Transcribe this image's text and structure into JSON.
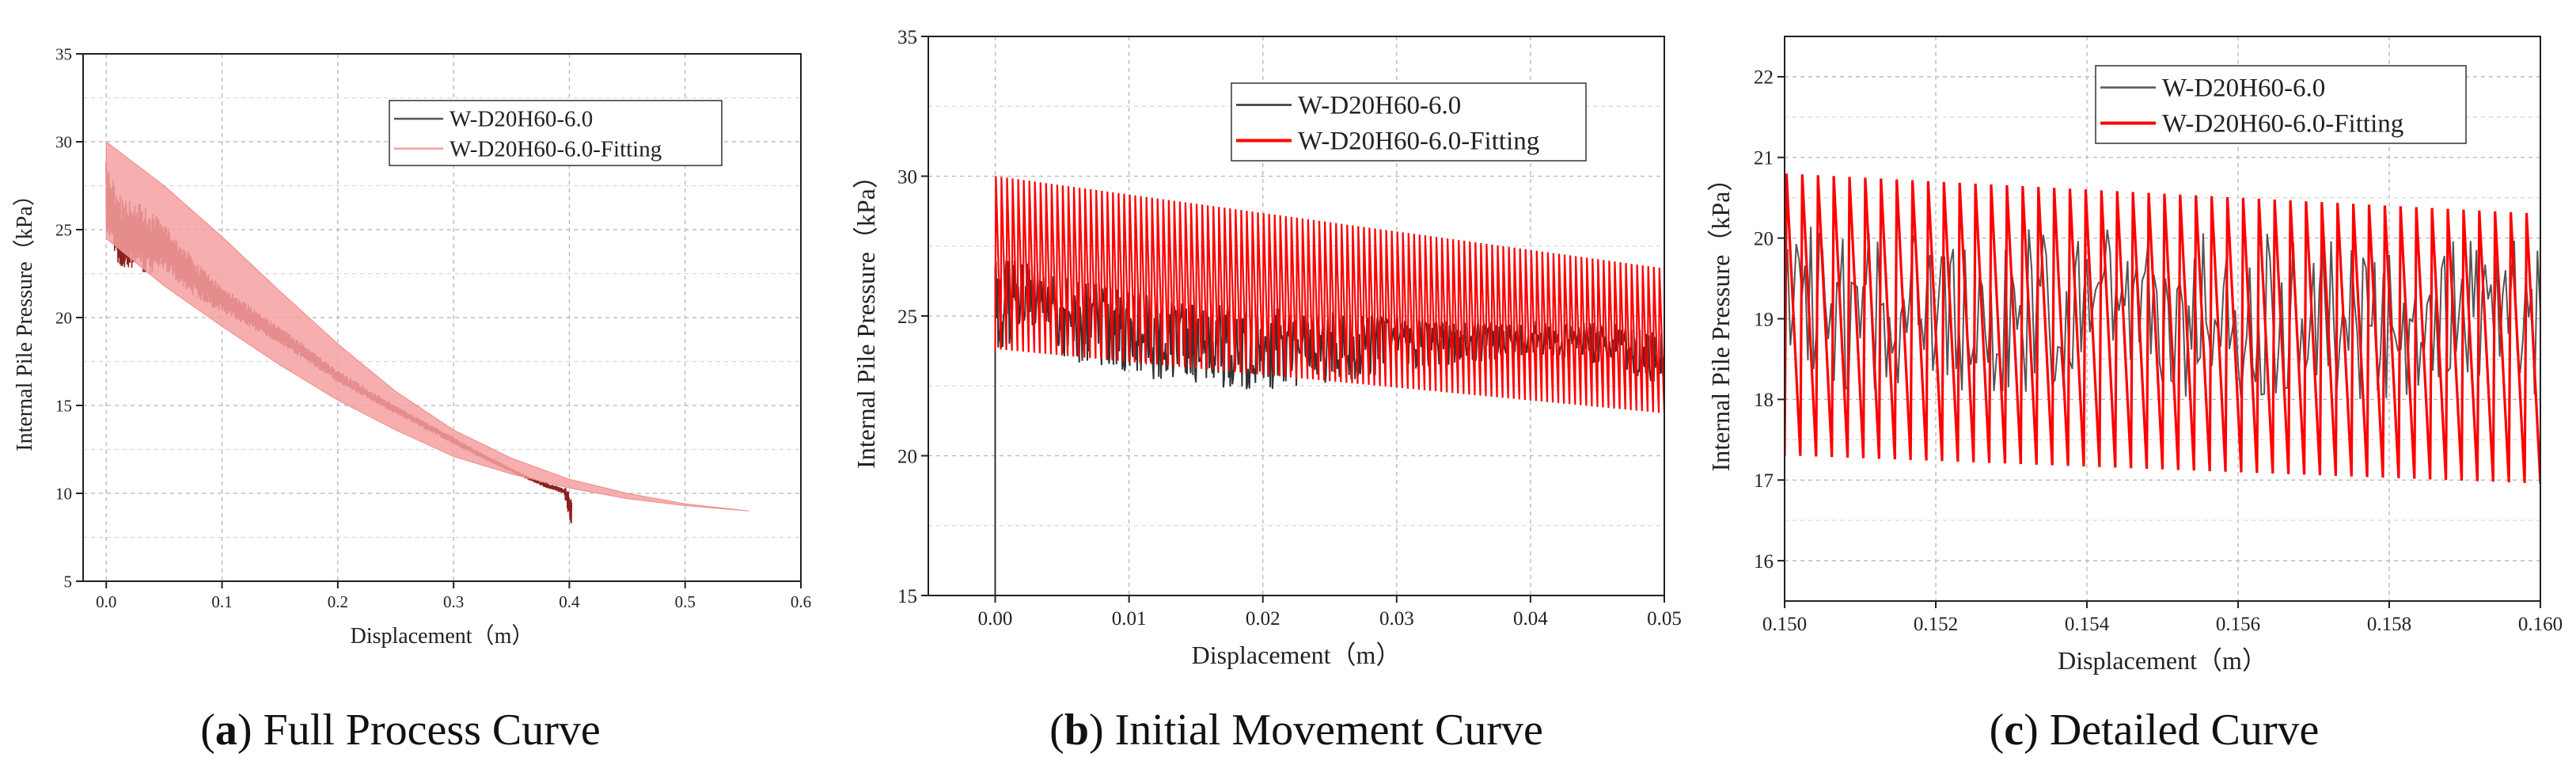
{
  "chart_data": [
    {
      "type": "line",
      "caption": {
        "letter": "a",
        "text": "Full Process Curve"
      },
      "xlabel": "Displacement（m）",
      "ylabel": "Internal Pile Pressure（kPa）",
      "xlim": [
        -0.02,
        0.6
      ],
      "ylim": [
        5,
        35
      ],
      "xticks": [
        "0.0",
        "0.1",
        "0.2",
        "0.3",
        "0.4",
        "0.5",
        "0.6"
      ],
      "yticks": [
        "5",
        "10",
        "15",
        "20",
        "25",
        "30",
        "35"
      ],
      "grid": true,
      "legend_position": "top-right",
      "series": [
        {
          "name": "W-D20H60-6.0",
          "color": "#8b2020",
          "style": "noisy-band",
          "x": [
            0.0,
            0.01,
            0.03,
            0.05,
            0.08,
            0.1,
            0.15,
            0.2,
            0.25,
            0.3,
            0.33,
            0.36,
            0.38,
            0.395,
            0.4,
            0.402
          ],
          "y_low": [
            25,
            23,
            22.5,
            22.5,
            21,
            20.3,
            18.5,
            16.3,
            14.5,
            12.8,
            11.8,
            10.9,
            10.3,
            10.0,
            8.5,
            7.5
          ],
          "y_high": [
            29,
            27,
            26.5,
            25.5,
            23,
            21.8,
            19.5,
            17.0,
            15.0,
            13.2,
            12.1,
            11.1,
            10.6,
            10.3,
            10.4,
            9.5
          ]
        },
        {
          "name": "W-D20H60-6.0-Fitting",
          "color": "#f5a0a0",
          "style": "band",
          "x": [
            0.0,
            0.05,
            0.1,
            0.15,
            0.2,
            0.25,
            0.3,
            0.35,
            0.4,
            0.45,
            0.5,
            0.555
          ],
          "y_low": [
            24.5,
            21.8,
            19.5,
            17.3,
            15.3,
            13.6,
            12.1,
            11.1,
            10.3,
            9.7,
            9.3,
            9.0
          ],
          "y_high": [
            30.0,
            27.5,
            24.6,
            21.5,
            18.5,
            15.8,
            13.6,
            12.0,
            10.8,
            10.0,
            9.4,
            9.0
          ]
        }
      ]
    },
    {
      "type": "line",
      "caption": {
        "letter": "b",
        "text": "Initial Movement Curve"
      },
      "xlabel": "Displacement（m）",
      "ylabel": "Internal Pile Pressure（kPa）",
      "xlim": [
        -0.005,
        0.05
      ],
      "ylim": [
        15,
        35
      ],
      "xticks": [
        "0.00",
        "0.01",
        "0.02",
        "0.03",
        "0.04",
        "0.05"
      ],
      "yticks": [
        "15",
        "20",
        "25",
        "30",
        "35"
      ],
      "grid": true,
      "legend_position": "top-right",
      "series": [
        {
          "name": "W-D20H60-6.0",
          "color": "#333333",
          "style": "noisy",
          "x": [
            0.0,
            0.002,
            0.005,
            0.01,
            0.015,
            0.02,
            0.025,
            0.03,
            0.035,
            0.04,
            0.045,
            0.05
          ],
          "y_low": [
            23.0,
            24.5,
            23.5,
            22.8,
            22.5,
            22.3,
            22.5,
            23.0,
            23.3,
            23.5,
            23.3,
            22.5
          ],
          "y_high": [
            27.5,
            27.0,
            26.5,
            26.0,
            25.5,
            25.3,
            25.2,
            25.0,
            24.8,
            24.8,
            24.8,
            24.5
          ]
        },
        {
          "name": "W-D20H60-6.0-Fitting",
          "color": "#ff0000",
          "style": "sawtooth",
          "x": [
            0.0,
            0.05
          ],
          "y_low": [
            23.8,
            21.5
          ],
          "y_high": [
            30.0,
            26.7
          ]
        }
      ]
    },
    {
      "type": "line",
      "caption": {
        "letter": "c",
        "text": "Detailed Curve"
      },
      "xlabel": "Displacement（m）",
      "ylabel": "Internal Pile Pressure（kPa）",
      "xlim": [
        0.15,
        0.16
      ],
      "ylim": [
        15.5,
        22.5
      ],
      "xticks": [
        "0.150",
        "0.152",
        "0.154",
        "0.156",
        "0.158",
        "0.160"
      ],
      "yticks": [
        "16",
        "17",
        "18",
        "19",
        "20",
        "21",
        "22"
      ],
      "grid": true,
      "legend_position": "top-right",
      "series": [
        {
          "name": "W-D20H60-6.0",
          "color": "#555555",
          "style": "noisy",
          "x": [
            0.15,
            0.16
          ],
          "y_low": [
            18.0,
            18.0
          ],
          "y_high": [
            20.2,
            20.0
          ]
        },
        {
          "name": "W-D20H60-6.0-Fitting",
          "color": "#ff0000",
          "style": "sawtooth",
          "x": [
            0.15,
            0.16
          ],
          "y_low": [
            17.3,
            16.95
          ],
          "y_high": [
            20.8,
            20.3
          ]
        }
      ]
    }
  ]
}
